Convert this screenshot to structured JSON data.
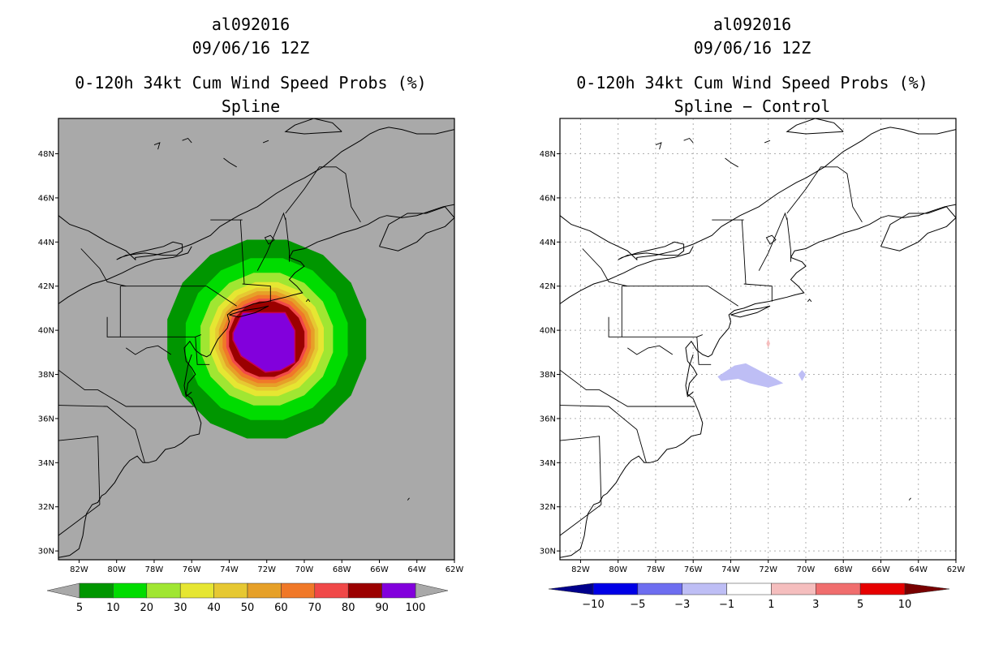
{
  "colors": {
    "land_left": "#a9a9a9",
    "land_right": "#ffffff",
    "coast": "#000000",
    "grid": "#b0b0b0"
  },
  "axes": {
    "lat_labels": [
      "48N",
      "46N",
      "44N",
      "42N",
      "40N",
      "38N",
      "36N",
      "34N",
      "32N",
      "30N"
    ],
    "lat_values": [
      48,
      46,
      44,
      42,
      40,
      38,
      36,
      34,
      32,
      30
    ],
    "lon_labels": [
      "82W",
      "80W",
      "78W",
      "76W",
      "74W",
      "72W",
      "70W",
      "68W",
      "66W",
      "64W",
      "62W"
    ],
    "lon_values": [
      -82,
      -80,
      -78,
      -76,
      -74,
      -72,
      -70,
      -68,
      -66,
      -64,
      -62
    ],
    "lon_range": [
      -83.1,
      -62.0
    ],
    "lat_range": [
      29.6,
      49.6
    ]
  },
  "left_panel": {
    "storm_id": "al092016",
    "datetime": "09/06/16 12Z",
    "title": "0-120h 34kt Cum Wind Speed Probs (%)",
    "subtitle": "Spline",
    "colorbar": {
      "labels": [
        "5",
        "10",
        "20",
        "30",
        "40",
        "50",
        "60",
        "70",
        "80",
        "90",
        "100"
      ],
      "colors": [
        "#009600",
        "#00dc00",
        "#a0e632",
        "#e6e632",
        "#e6c832",
        "#e6a028",
        "#f07828",
        "#f04848",
        "#9b0000",
        "#8200dc"
      ],
      "under_color": "#a9a9a9",
      "over_color": "#a9a9a9"
    },
    "chart_data": {
      "type": "contour_map",
      "variable": "34kt cumulative wind speed probability (%)",
      "center_lon": -72.0,
      "center_lat": 39.6,
      "levels": [
        {
          "min": 5,
          "max": 10,
          "radius_deg": 5.4,
          "color": "#009600"
        },
        {
          "min": 10,
          "max": 20,
          "radius_deg": 4.4,
          "color": "#00dc00"
        },
        {
          "min": 20,
          "max": 30,
          "radius_deg": 3.6,
          "color": "#a0e632"
        },
        {
          "min": 30,
          "max": 40,
          "radius_deg": 3.1,
          "color": "#e6e632"
        },
        {
          "min": 40,
          "max": 50,
          "radius_deg": 2.8,
          "color": "#e6c832"
        },
        {
          "min": 50,
          "max": 60,
          "radius_deg": 2.6,
          "color": "#e6a028"
        },
        {
          "min": 60,
          "max": 70,
          "radius_deg": 2.4,
          "color": "#f07828"
        },
        {
          "min": 70,
          "max": 80,
          "radius_deg": 2.2,
          "color": "#f04848"
        },
        {
          "min": 80,
          "max": 90,
          "radius_deg": 2.05,
          "color": "#9b0000"
        }
      ],
      "core_100": {
        "color": "#8200dc",
        "lon_min": -73.8,
        "lon_max": -70.5,
        "lat_min": 38.1,
        "lat_max": 40.8
      }
    }
  },
  "right_panel": {
    "storm_id": "al092016",
    "datetime": "09/06/16 12Z",
    "title": "0-120h 34kt Cum Wind Speed Probs (%)",
    "subtitle": "Spline − Control",
    "colorbar": {
      "labels": [
        "−10",
        "−5",
        "−3",
        "−1",
        "1",
        "3",
        "5",
        "10"
      ],
      "colors": [
        "#0000e6",
        "#6e6ef0",
        "#bebef5",
        "#ffffff",
        "#f5bebe",
        "#f06e6e",
        "#e60000"
      ],
      "under_color": "#00008c",
      "over_color": "#780000"
    },
    "chart_data": {
      "type": "contour_map",
      "variable": "Spline minus Control probability difference (%)",
      "features": [
        {
          "level": "-3 to -1",
          "color": "#bebef5",
          "lon": [
            -74.7,
            -73.8,
            -73.2,
            -72.3,
            -71.6,
            -71.2,
            -72.0,
            -73.0,
            -73.6,
            -74.5
          ],
          "lat": [
            37.9,
            38.4,
            38.5,
            38.1,
            37.8,
            37.6,
            37.4,
            37.6,
            37.8,
            37.7
          ]
        },
        {
          "level": "-3 to -1",
          "color": "#bebef5",
          "lon": [
            -70.4,
            -70.2,
            -70.0,
            -70.2
          ],
          "lat": [
            38.0,
            38.2,
            38.0,
            37.7
          ]
        },
        {
          "level": "1 to 3",
          "color": "#f5bebe",
          "lon": [
            -72.1,
            -72.0,
            -71.9,
            -72.0
          ],
          "lat": [
            39.4,
            39.6,
            39.4,
            39.2
          ]
        }
      ]
    }
  },
  "coastlines": [
    {
      "lon": [
        -83.1,
        -82.5,
        -81.5,
        -80.5,
        -79.5,
        -79.0,
        -79.0,
        -78.0,
        -77.0,
        -76.0,
        -75.0,
        -74.5,
        -73.5,
        -72.5,
        -71.5,
        -70.5,
        -70.0,
        -69.0,
        -68.0,
        -67.0,
        -66.5,
        -66.0,
        -65.5,
        -64.8,
        -64.0,
        -63.0,
        -62.0
      ],
      "lat": [
        45.2,
        44.8,
        44.5,
        44.0,
        43.6,
        43.2,
        43.3,
        43.4,
        43.6,
        43.9,
        44.3,
        44.7,
        45.2,
        45.6,
        46.2,
        46.7,
        46.9,
        47.4,
        48.1,
        48.6,
        48.9,
        49.1,
        49.2,
        49.1,
        48.9,
        48.9,
        49.1
      ]
    },
    {
      "lon": [
        -83.1,
        -82.6,
        -82.0,
        -81.3,
        -80.5,
        -79.7,
        -79.0,
        -78.0,
        -77.0,
        -76.2,
        -76.0
      ],
      "lat": [
        41.2,
        41.5,
        41.8,
        42.1,
        42.3,
        42.6,
        42.9,
        43.2,
        43.3,
        43.5,
        43.8
      ]
    },
    {
      "lon": [
        -80.0,
        -79.5,
        -78.5,
        -77.5,
        -76.8,
        -76.5,
        -76.5,
        -77.0,
        -77.5,
        -78.0,
        -79.0,
        -79.8,
        -80.0
      ],
      "lat": [
        43.2,
        43.4,
        43.5,
        43.4,
        43.4,
        43.6,
        43.9,
        44.0,
        43.8,
        43.7,
        43.5,
        43.3,
        43.2
      ]
    },
    {
      "lon": [
        -83.1,
        -82.5,
        -82.0,
        -81.8,
        -81.7,
        -81.6,
        -81.3,
        -81.0,
        -80.8,
        -80.6,
        -80.4,
        -80.1,
        -79.9,
        -79.6,
        -79.3,
        -78.9,
        -78.6,
        -78.3,
        -77.9,
        -77.4,
        -76.9,
        -76.5,
        -76.1,
        -75.6,
        -75.5,
        -75.7,
        -76.0,
        -76.3,
        -76.2,
        -75.9,
        -75.8,
        -76.0,
        -76.3,
        -76.4,
        -76.1,
        -75.8,
        -75.5,
        -75.2,
        -75.0,
        -74.9,
        -74.6,
        -74.1,
        -74.0,
        -74.1,
        -73.8,
        -73.3,
        -72.7,
        -72.0,
        -71.5,
        -71.0,
        -70.6,
        -70.1,
        -70.4,
        -70.8,
        -70.5,
        -70.0,
        -70.2,
        -70.8,
        -70.6,
        -70.0,
        -69.3,
        -68.6,
        -68.0,
        -67.2,
        -66.6,
        -66.0,
        -65.6,
        -64.8,
        -64.0,
        -63.3,
        -62.6,
        -62.0
      ],
      "lat": [
        29.7,
        29.8,
        30.1,
        30.7,
        31.3,
        31.7,
        32.1,
        32.2,
        32.5,
        32.6,
        32.8,
        33.1,
        33.4,
        33.8,
        34.1,
        34.3,
        34.0,
        34.0,
        34.1,
        34.6,
        34.7,
        34.9,
        35.2,
        35.3,
        35.8,
        36.3,
        36.9,
        37.1,
        37.6,
        37.9,
        38.0,
        38.3,
        38.6,
        39.2,
        39.5,
        39.1,
        38.9,
        38.8,
        38.9,
        39.1,
        39.6,
        40.1,
        40.4,
        40.7,
        40.9,
        41.0,
        41.2,
        41.3,
        41.4,
        41.5,
        41.6,
        41.7,
        42.0,
        42.3,
        42.6,
        42.9,
        43.1,
        43.3,
        43.6,
        43.7,
        44.0,
        44.2,
        44.4,
        44.6,
        44.8,
        45.1,
        45.2,
        45.1,
        45.2,
        45.4,
        45.6,
        45.7
      ]
    },
    {
      "lon": [
        -76.0,
        -76.2,
        -76.4,
        -76.3,
        -76.0
      ],
      "lat": [
        38.9,
        38.4,
        37.5,
        37.0,
        37.2
      ]
    },
    {
      "lon": [
        -74.0,
        -73.2,
        -72.4,
        -71.9,
        -72.6,
        -73.5,
        -74.0
      ],
      "lat": [
        40.7,
        40.9,
        41.0,
        41.1,
        40.8,
        40.6,
        40.7
      ]
    },
    {
      "lon": [
        -66.0,
        -65.0,
        -64.0,
        -63.5,
        -62.5,
        -62.0,
        -62.5,
        -63.5,
        -64.5,
        -65.5,
        -66.0
      ],
      "lat": [
        43.8,
        43.6,
        44.0,
        44.4,
        44.7,
        45.1,
        45.6,
        45.3,
        45.3,
        44.8,
        43.8
      ]
    },
    {
      "lon": [
        -68.0,
        -68.5,
        -69.5,
        -70.5,
        -71.0,
        -70.0,
        -68.0
      ],
      "lat": [
        49.0,
        49.4,
        49.6,
        49.3,
        49.0,
        48.9,
        49.0
      ]
    }
  ],
  "borders": [
    {
      "lon": [
        -79.8,
        -75.2
      ],
      "lat": [
        42.0,
        42.0
      ]
    },
    {
      "lon": [
        -75.2,
        -73.6
      ],
      "lat": [
        42.0,
        41.1
      ]
    },
    {
      "lon": [
        -73.3,
        -71.8,
        -71.8
      ],
      "lat": [
        42.1,
        42.0,
        41.3
      ]
    },
    {
      "lon": [
        -73.4,
        -73.3,
        -73.2
      ],
      "lat": [
        45.0,
        43.6,
        42.1
      ]
    },
    {
      "lon": [
        -72.5,
        -72.0,
        -71.1,
        -71.0
      ],
      "lat": [
        42.7,
        43.5,
        45.3,
        45.0
      ]
    },
    {
      "lon": [
        -71.0,
        -70.8,
        -70.8
      ],
      "lat": [
        45.1,
        43.6,
        43.1
      ]
    },
    {
      "lon": [
        -79.8,
        -79.8,
        -80.5,
        -80.5
      ],
      "lat": [
        42.0,
        39.7,
        39.7,
        40.6
      ]
    },
    {
      "lon": [
        -79.8,
        -75.8,
        -75.5
      ],
      "lat": [
        39.7,
        39.7,
        39.8
      ]
    },
    {
      "lon": [
        -75.8,
        -75.7,
        -75.05
      ],
      "lat": [
        39.7,
        38.45,
        38.45
      ]
    },
    {
      "lon": [
        -79.5,
        -79.0,
        -78.4,
        -77.8,
        -77.1
      ],
      "lat": [
        39.2,
        38.9,
        39.2,
        39.3,
        38.9
      ]
    },
    {
      "lon": [
        -83.1,
        -81.7,
        -81.0,
        -79.5,
        -77.0,
        -75.9
      ],
      "lat": [
        38.2,
        37.3,
        37.3,
        36.55,
        36.55,
        36.55
      ]
    },
    {
      "lon": [
        -83.1,
        -80.5,
        -79.0,
        -78.5
      ],
      "lat": [
        36.6,
        36.55,
        35.5,
        34.0
      ]
    },
    {
      "lon": [
        -83.1,
        -82.0,
        -81.0,
        -80.9
      ],
      "lat": [
        35.0,
        35.1,
        35.2,
        32.1
      ]
    },
    {
      "lon": [
        -83.1,
        -80.9
      ],
      "lat": [
        30.7,
        32.1
      ]
    },
    {
      "lon": [
        -81.9,
        -80.9,
        -80.5,
        -79.5
      ],
      "lat": [
        43.7,
        42.8,
        42.2,
        42.0
      ]
    },
    {
      "lon": [
        -75.0,
        -74.2,
        -73.3
      ],
      "lat": [
        45.0,
        45.0,
        45.0
      ]
    },
    {
      "lon": [
        -71.0,
        -70.0,
        -69.2,
        -68.3,
        -67.8,
        -67.5,
        -67.0
      ],
      "lat": [
        45.3,
        46.4,
        47.4,
        47.4,
        47.1,
        45.6,
        44.9
      ]
    }
  ],
  "lakes": [
    {
      "lon": [
        -72.1,
        -71.8,
        -71.6,
        -71.9,
        -72.1
      ],
      "lat": [
        44.2,
        44.3,
        44.1,
        43.9,
        44.2
      ]
    }
  ],
  "islands": [
    {
      "lon": [
        -69.9,
        -69.8,
        -69.7
      ],
      "lat": [
        41.3,
        41.4,
        41.3
      ]
    },
    {
      "lon": [
        -64.5,
        -64.4
      ],
      "lat": [
        32.3,
        32.4
      ]
    },
    {
      "lon": [
        -78.0,
        -77.7,
        -77.8
      ],
      "lat": [
        48.4,
        48.5,
        48.2
      ]
    },
    {
      "lon": [
        -76.5,
        -76.2,
        -76.0
      ],
      "lat": [
        48.6,
        48.7,
        48.5
      ]
    },
    {
      "lon": [
        -74.3,
        -74.0,
        -73.6
      ],
      "lat": [
        47.8,
        47.6,
        47.4
      ]
    },
    {
      "lon": [
        -72.2,
        -71.9
      ],
      "lat": [
        48.5,
        48.6
      ]
    }
  ]
}
